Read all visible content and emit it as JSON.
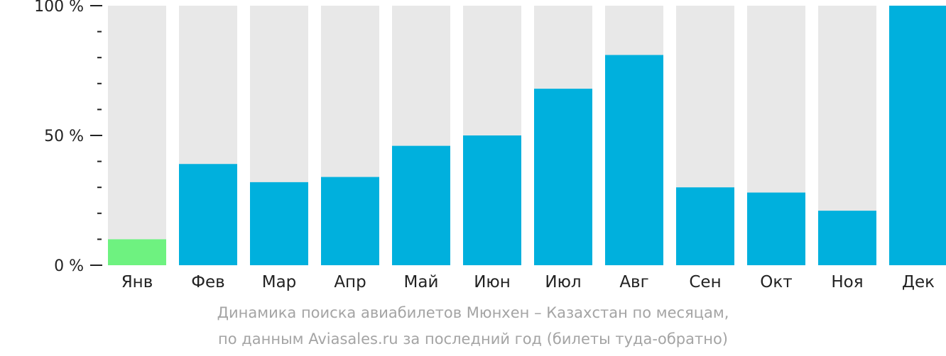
{
  "chart_data": {
    "type": "bar",
    "categories": [
      "Янв",
      "Фев",
      "Мар",
      "Апр",
      "Май",
      "Июн",
      "Июл",
      "Авг",
      "Сен",
      "Окт",
      "Ноя",
      "Дек"
    ],
    "values": [
      10,
      39,
      32,
      34,
      46,
      50,
      68,
      81,
      30,
      28,
      21,
      100
    ],
    "ylim": [
      0,
      100
    ],
    "y_ticks": [
      {
        "value": 0,
        "label": "0 %"
      },
      {
        "value": 50,
        "label": "50 %"
      },
      {
        "value": 100,
        "label": "100 %"
      }
    ],
    "highlight_index": 0,
    "colors": {
      "bar": "#00b0dd",
      "highlight": "#6ef280",
      "background": "#e8e8e8",
      "axis": "#222222",
      "text": "#222222",
      "caption": "#a4a4a4"
    }
  },
  "caption": {
    "line1": "Динамика поиска авиабилетов Мюнхен – Казахстан по месяцам,",
    "line2": "по данным Aviasales.ru за последний год (билеты туда-обратно)"
  }
}
